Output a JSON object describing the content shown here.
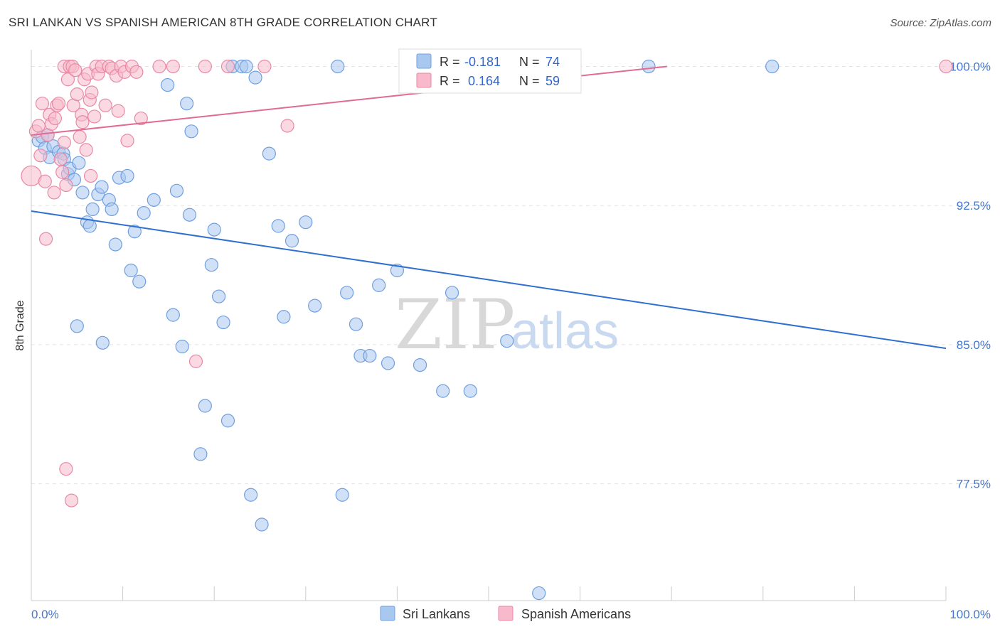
{
  "header": {
    "title": "SRI LANKAN VS SPANISH AMERICAN 8TH GRADE CORRELATION CHART",
    "source": "Source: ZipAtlas.com"
  },
  "watermark": {
    "zip": "ZIP",
    "atlas": "atlas"
  },
  "legend_box": {
    "rows": [
      {
        "r_label": "R =",
        "r_value": "-0.181",
        "n_label": "N =",
        "n_value": "74",
        "color": "#a9c8f0",
        "stroke": "#6f9fe0"
      },
      {
        "r_label": "R =",
        "r_value": "0.164",
        "n_label": "N =",
        "n_value": "59",
        "color": "#f7b9cb",
        "stroke": "#e889a6"
      }
    ]
  },
  "bottom_legend": [
    {
      "label": "Sri Lankans",
      "color": "#a9c8f0",
      "stroke": "#6f9fe0"
    },
    {
      "label": "Spanish Americans",
      "color": "#f7b9cb",
      "stroke": "#e889a6"
    }
  ],
  "chart_data": {
    "type": "scatter",
    "title": "SRI LANKAN VS SPANISH AMERICAN 8TH GRADE CORRELATION CHART",
    "xlabel": "",
    "ylabel": "8th Grade",
    "xlim": [
      0,
      100
    ],
    "ylim": [
      71.2,
      100.9
    ],
    "x_tick_labels": [
      "0.0%",
      "100.0%"
    ],
    "y_ticks": [
      {
        "value": 100.0,
        "label": "100.0%"
      },
      {
        "value": 92.5,
        "label": "92.5%"
      },
      {
        "value": 85.0,
        "label": "85.0%"
      },
      {
        "value": 77.5,
        "label": "77.5%"
      }
    ],
    "series": [
      {
        "name": "Sri Lankans",
        "color": "#6f9fe0",
        "fill": "#a9c8f0",
        "line_color": "#2f6fd0",
        "trend": {
          "x": [
            0,
            100
          ],
          "y": [
            92.2,
            84.8
          ]
        },
        "points": [
          [
            0.8,
            96.0
          ],
          [
            1.2,
            96.2
          ],
          [
            1.5,
            95.6
          ],
          [
            1.8,
            96.3
          ],
          [
            2.0,
            95.1
          ],
          [
            2.4,
            95.7
          ],
          [
            3.0,
            95.4
          ],
          [
            3.5,
            95.3
          ],
          [
            3.6,
            95.0
          ],
          [
            4.0,
            94.2
          ],
          [
            4.2,
            94.5
          ],
          [
            4.7,
            93.9
          ],
          [
            5.2,
            94.8
          ],
          [
            5.6,
            93.2
          ],
          [
            6.1,
            91.6
          ],
          [
            6.4,
            91.4
          ],
          [
            6.7,
            92.3
          ],
          [
            7.3,
            93.1
          ],
          [
            7.7,
            93.5
          ],
          [
            8.5,
            92.8
          ],
          [
            8.8,
            92.3
          ],
          [
            9.2,
            90.4
          ],
          [
            9.6,
            94.0
          ],
          [
            10.5,
            94.1
          ],
          [
            10.9,
            89.0
          ],
          [
            11.3,
            91.1
          ],
          [
            11.8,
            88.4
          ],
          [
            12.3,
            92.1
          ],
          [
            13.4,
            92.8
          ],
          [
            14.9,
            99.0
          ],
          [
            15.5,
            86.6
          ],
          [
            15.9,
            93.3
          ],
          [
            16.5,
            84.9
          ],
          [
            17.0,
            98.0
          ],
          [
            17.3,
            92.0
          ],
          [
            17.5,
            96.5
          ],
          [
            18.5,
            79.1
          ],
          [
            19.0,
            81.7
          ],
          [
            19.7,
            89.3
          ],
          [
            20.0,
            91.2
          ],
          [
            20.5,
            87.6
          ],
          [
            21.0,
            86.2
          ],
          [
            21.5,
            80.9
          ],
          [
            22.0,
            100.0
          ],
          [
            23.0,
            100.0
          ],
          [
            23.5,
            100.0
          ],
          [
            24.0,
            76.9
          ],
          [
            24.5,
            99.4
          ],
          [
            25.2,
            75.3
          ],
          [
            26.0,
            95.3
          ],
          [
            27.0,
            91.4
          ],
          [
            27.6,
            86.5
          ],
          [
            28.5,
            90.6
          ],
          [
            30.0,
            91.6
          ],
          [
            31.0,
            87.1
          ],
          [
            33.5,
            100.0
          ],
          [
            34.0,
            76.9
          ],
          [
            34.5,
            87.8
          ],
          [
            35.5,
            86.1
          ],
          [
            36.0,
            84.4
          ],
          [
            37.0,
            84.4
          ],
          [
            38.0,
            88.2
          ],
          [
            39.0,
            84.0
          ],
          [
            40.0,
            89.0
          ],
          [
            42.5,
            83.9
          ],
          [
            45.0,
            82.5
          ],
          [
            46.0,
            87.8
          ],
          [
            48.0,
            82.5
          ],
          [
            52.0,
            85.2
          ],
          [
            55.5,
            71.6
          ],
          [
            67.5,
            100.0
          ],
          [
            81.0,
            100.0
          ],
          [
            5.0,
            86.0
          ],
          [
            7.8,
            85.1
          ]
        ]
      },
      {
        "name": "Spanish Americans",
        "color": "#e889a6",
        "fill": "#f7b9cb",
        "line_color": "#e06b93",
        "trend": {
          "x": [
            0,
            69.5
          ],
          "y": [
            96.3,
            100.0
          ]
        },
        "points": [
          [
            0.0,
            94.1
          ],
          [
            0.5,
            96.5
          ],
          [
            0.8,
            96.8
          ],
          [
            1.0,
            95.2
          ],
          [
            1.2,
            98.0
          ],
          [
            1.5,
            93.8
          ],
          [
            1.6,
            90.7
          ],
          [
            1.8,
            96.3
          ],
          [
            2.0,
            97.4
          ],
          [
            2.2,
            96.9
          ],
          [
            2.5,
            93.2
          ],
          [
            2.6,
            97.2
          ],
          [
            2.8,
            97.9
          ],
          [
            3.0,
            98.0
          ],
          [
            3.2,
            95.0
          ],
          [
            3.4,
            94.3
          ],
          [
            3.6,
            95.9
          ],
          [
            3.6,
            100.0
          ],
          [
            3.8,
            93.6
          ],
          [
            3.8,
            78.3
          ],
          [
            4.0,
            99.3
          ],
          [
            4.2,
            100.0
          ],
          [
            4.4,
            76.6
          ],
          [
            4.5,
            100.0
          ],
          [
            4.6,
            97.9
          ],
          [
            4.8,
            99.8
          ],
          [
            5.0,
            98.5
          ],
          [
            5.3,
            96.2
          ],
          [
            5.5,
            97.4
          ],
          [
            5.6,
            97.0
          ],
          [
            5.8,
            99.3
          ],
          [
            6.0,
            95.5
          ],
          [
            6.2,
            99.6
          ],
          [
            6.4,
            98.2
          ],
          [
            6.5,
            94.1
          ],
          [
            6.6,
            98.6
          ],
          [
            6.9,
            97.3
          ],
          [
            7.1,
            100.0
          ],
          [
            7.3,
            99.6
          ],
          [
            7.7,
            100.0
          ],
          [
            8.1,
            97.9
          ],
          [
            8.5,
            100.0
          ],
          [
            8.8,
            99.9
          ],
          [
            9.3,
            99.5
          ],
          [
            9.5,
            97.6
          ],
          [
            9.8,
            100.0
          ],
          [
            10.2,
            99.7
          ],
          [
            10.5,
            96.0
          ],
          [
            11.0,
            100.0
          ],
          [
            11.5,
            99.7
          ],
          [
            12.0,
            97.2
          ],
          [
            14.0,
            100.0
          ],
          [
            15.5,
            100.0
          ],
          [
            18.0,
            84.1
          ],
          [
            19.0,
            100.0
          ],
          [
            21.5,
            100.0
          ],
          [
            25.5,
            100.0
          ],
          [
            28.0,
            96.8
          ],
          [
            100.0,
            100.0
          ]
        ]
      }
    ]
  }
}
